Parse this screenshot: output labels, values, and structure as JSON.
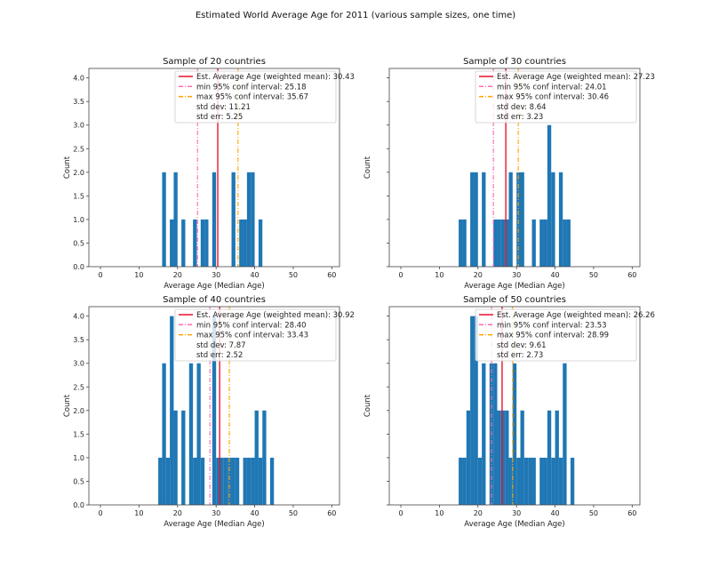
{
  "figure_title": "Estimated World Average Age for 2011 (various sample sizes, one time)",
  "colors": {
    "bar": "#1f77b4",
    "mean": "#e8102a",
    "min": "#ff69b4",
    "max": "#ffa500"
  },
  "chart_data": [
    {
      "type": "bar",
      "title": "Sample of 20 countries",
      "xlabel": "Average Age (Median Age)",
      "ylabel": "Count",
      "xlim": [
        -3,
        62
      ],
      "ylim": [
        0,
        4.2
      ],
      "xticks": [
        "0",
        "10",
        "20",
        "30",
        "40",
        "50",
        "60"
      ],
      "yticks": [
        "0.0",
        "0.5",
        "1.0",
        "1.5",
        "2.0",
        "2.5",
        "3.0",
        "3.5",
        "4.0"
      ],
      "bins": [
        16,
        18,
        19,
        21,
        24,
        26,
        27,
        29,
        34,
        36,
        37,
        38,
        39,
        41
      ],
      "counts": [
        2,
        1,
        2,
        1,
        1,
        1,
        1,
        2,
        2,
        1,
        1,
        2,
        2,
        1
      ],
      "mean": 30.43,
      "min_ci": 25.18,
      "max_ci": 35.67,
      "legend": [
        "Est. Average Age (weighted mean): 30.43",
        "min 95% conf interval: 25.18",
        "max 95% conf interval: 35.67",
        "std dev: 11.21",
        "std err: 5.25"
      ],
      "legend_placement": "top-right"
    },
    {
      "type": "bar",
      "title": "Sample of 30 countries",
      "xlabel": "Average Age (Median Age)",
      "ylabel": "Count",
      "xlim": [
        -3,
        62
      ],
      "ylim": [
        0,
        4.2
      ],
      "xticks": [
        "0",
        "10",
        "20",
        "30",
        "40",
        "50",
        "60"
      ],
      "yticks": [],
      "bins": [
        15,
        16,
        18,
        19,
        21,
        24,
        25,
        26,
        27,
        28,
        30,
        31,
        34,
        36,
        37,
        38,
        39,
        41,
        42,
        43
      ],
      "counts": [
        1,
        1,
        2,
        2,
        2,
        1,
        1,
        1,
        1,
        2,
        2,
        2,
        1,
        1,
        1,
        3,
        2,
        2,
        1,
        1
      ],
      "mean": 27.23,
      "min_ci": 24.01,
      "max_ci": 30.46,
      "legend": [
        "Est. Average Age (weighted mean): 27.23",
        "min 95% conf interval: 24.01",
        "max 95% conf interval: 30.46",
        "std dev: 8.64",
        "std err: 3.23"
      ],
      "legend_placement": "top-right"
    },
    {
      "type": "bar",
      "title": "Sample of 40 countries",
      "xlabel": "Average Age (Median Age)",
      "ylabel": "Count",
      "xlim": [
        -3,
        62
      ],
      "ylim": [
        0,
        4.2
      ],
      "xticks": [
        "0",
        "10",
        "20",
        "30",
        "40",
        "50",
        "60"
      ],
      "yticks": [
        "0.0",
        "0.5",
        "1.0",
        "1.5",
        "2.0",
        "2.5",
        "3.0",
        "3.5",
        "4.0"
      ],
      "bins": [
        15,
        16,
        17,
        18,
        19,
        21,
        23,
        24,
        25,
        26,
        29,
        30,
        31,
        32,
        33,
        34,
        35,
        37,
        38,
        39,
        40,
        41,
        42,
        44
      ],
      "counts": [
        1,
        3,
        1,
        4,
        2,
        2,
        3,
        1,
        3,
        1,
        4,
        1,
        1,
        1,
        1,
        1,
        1,
        1,
        1,
        1,
        2,
        1,
        2,
        1
      ],
      "mean": 30.92,
      "min_ci": 28.4,
      "max_ci": 33.43,
      "legend": [
        "Est. Average Age (weighted mean): 30.92",
        "min 95% conf interval: 28.40",
        "max 95% conf interval: 33.43",
        "std dev: 7.87",
        "std err: 2.52"
      ],
      "legend_placement": "top-right"
    },
    {
      "type": "bar",
      "title": "Sample of 50 countries",
      "xlabel": "Average Age (Median Age)",
      "ylabel": "Count",
      "xlim": [
        -3,
        62
      ],
      "ylim": [
        0,
        4.2
      ],
      "xticks": [
        "0",
        "10",
        "20",
        "30",
        "40",
        "50",
        "60"
      ],
      "yticks": [],
      "bins": [
        15,
        16,
        17,
        18,
        19,
        20,
        21,
        23,
        24,
        25,
        26,
        27,
        28,
        29,
        30,
        31,
        32,
        33,
        34,
        36,
        37,
        38,
        39,
        40,
        41,
        42,
        44
      ],
      "counts": [
        1,
        1,
        2,
        4,
        4,
        1,
        3,
        3,
        3,
        2,
        2,
        2,
        1,
        3,
        1,
        2,
        1,
        1,
        1,
        1,
        1,
        2,
        1,
        2,
        1,
        3,
        1
      ],
      "mean": 26.26,
      "min_ci": 23.53,
      "max_ci": 28.99,
      "legend": [
        "Est. Average Age (weighted mean): 26.26",
        "min 95% conf interval: 23.53",
        "max 95% conf interval: 28.99",
        "std dev: 9.61",
        "std err: 2.73"
      ],
      "legend_placement": "top-right"
    }
  ]
}
